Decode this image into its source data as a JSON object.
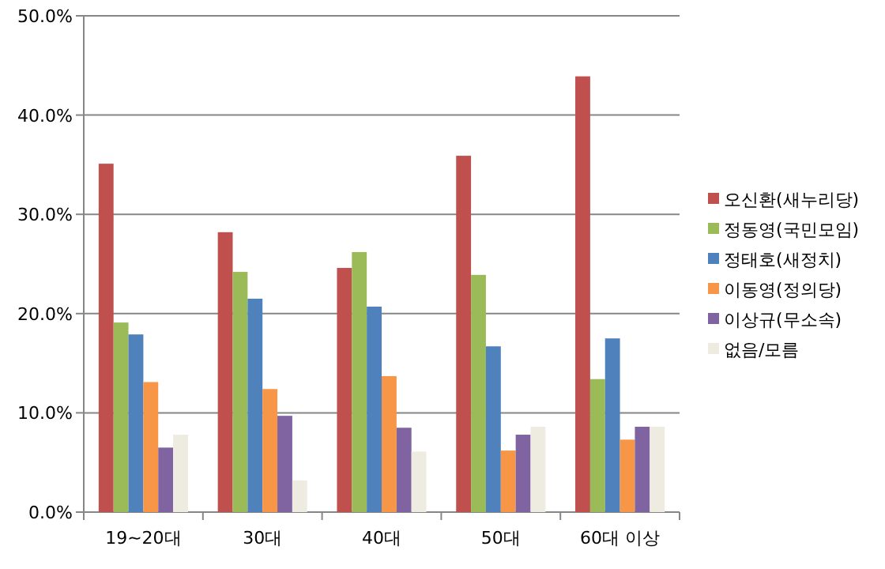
{
  "chart_data": {
    "type": "bar",
    "categories": [
      "19~20대",
      "30대",
      "40대",
      "50대",
      "60대 이상"
    ],
    "series": [
      {
        "name": "오신환(새누리당)",
        "color": "#c0504d",
        "values": [
          35.1,
          28.2,
          24.6,
          35.9,
          43.9
        ]
      },
      {
        "name": "정동영(국민모임)",
        "color": "#9bbb59",
        "values": [
          19.1,
          24.2,
          26.2,
          23.9,
          13.4
        ]
      },
      {
        "name": "정태호(새정치)",
        "color": "#4f81bd",
        "values": [
          17.9,
          21.5,
          20.7,
          16.7,
          17.5
        ]
      },
      {
        "name": "이동영(정의당)",
        "color": "#f79646",
        "values": [
          13.1,
          12.4,
          13.7,
          6.2,
          7.3
        ]
      },
      {
        "name": "이상규(무소속)",
        "color": "#8064a2",
        "values": [
          6.5,
          9.7,
          8.5,
          7.8,
          8.6
        ]
      },
      {
        "name": "없음/모름",
        "color": "#eeece1",
        "values": [
          7.8,
          3.2,
          6.1,
          8.6,
          8.6
        ]
      }
    ],
    "ylim": [
      0,
      50
    ],
    "yticks": [
      {
        "value": 0,
        "label": "0.0%"
      },
      {
        "value": 10,
        "label": "10.0%"
      },
      {
        "value": 20,
        "label": "20.0%"
      },
      {
        "value": 30,
        "label": "30.0%"
      },
      {
        "value": 40,
        "label": "40.0%"
      },
      {
        "value": 50,
        "label": "50.0%"
      }
    ],
    "grid": "y",
    "legend": "right"
  }
}
